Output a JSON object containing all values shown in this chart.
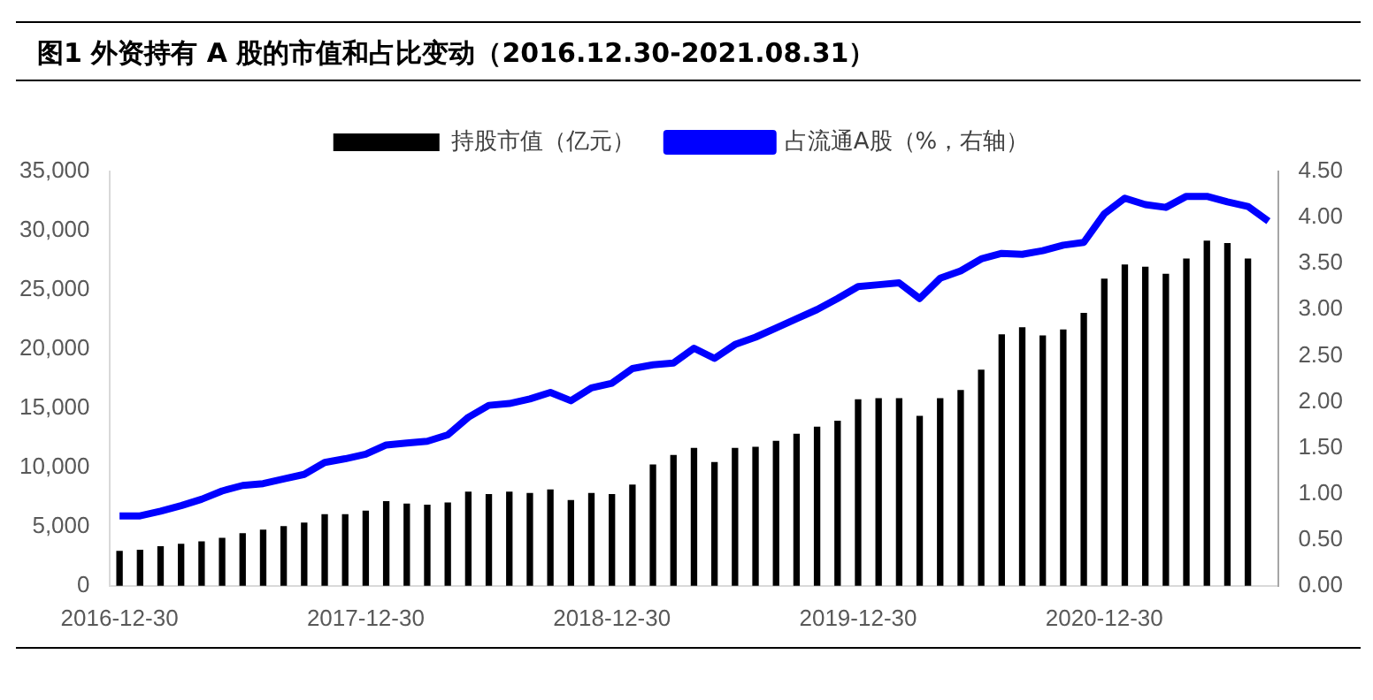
{
  "chart_data": {
    "type": "bar",
    "title": "图1  外资持有 A 股的市值和占比变动（2016.12.30-2021.08.31）",
    "categories": [
      "2016-12-30",
      null,
      null,
      null,
      null,
      null,
      null,
      null,
      null,
      null,
      null,
      null,
      "2017-12-30",
      null,
      null,
      null,
      null,
      null,
      null,
      null,
      null,
      null,
      null,
      null,
      "2018-12-30",
      null,
      null,
      null,
      null,
      null,
      null,
      null,
      null,
      null,
      null,
      null,
      "2019-12-30",
      null,
      null,
      null,
      null,
      null,
      null,
      null,
      null,
      null,
      null,
      null,
      "2020-12-30",
      null,
      null,
      null,
      null,
      null,
      null,
      null,
      null
    ],
    "series": [
      {
        "name": "持股市值（亿元）",
        "color": "#000000",
        "values": [
          2900,
          3000,
          3300,
          3500,
          3700,
          4000,
          4400,
          4700,
          5000,
          5300,
          6000,
          6000,
          6300,
          7100,
          6900,
          6800,
          7000,
          7900,
          7700,
          7900,
          7800,
          8100,
          7200,
          7800,
          7700,
          8500,
          10200,
          11000,
          11600,
          10400,
          11600,
          11700,
          12200,
          12800,
          13400,
          13900,
          15700,
          15800,
          15800,
          14300,
          15800,
          16500,
          18200,
          21200,
          21800,
          21100,
          21600,
          23000,
          25900,
          27100,
          26900,
          26300,
          27600,
          29100,
          28900,
          27600,
          null
        ]
      },
      {
        "name": "占流通A股（%，右轴）",
        "type": "line",
        "axis": "y2",
        "color": "#0000ff",
        "values": [
          0.76,
          0.76,
          0.81,
          0.87,
          0.94,
          1.03,
          1.09,
          1.11,
          1.16,
          1.21,
          1.34,
          1.38,
          1.43,
          1.53,
          1.55,
          1.57,
          1.64,
          1.83,
          1.96,
          1.98,
          2.03,
          2.1,
          2.01,
          2.15,
          2.2,
          2.36,
          2.4,
          2.42,
          2.58,
          2.47,
          2.62,
          2.7,
          2.8,
          2.9,
          3.0,
          3.12,
          3.25,
          3.27,
          3.29,
          3.12,
          3.34,
          3.42,
          3.55,
          3.61,
          3.6,
          3.64,
          3.7,
          3.73,
          4.04,
          4.21,
          4.14,
          4.11,
          4.23,
          4.23,
          4.17,
          4.12,
          3.96
        ]
      }
    ],
    "ylim": [
      0,
      35000
    ],
    "yticks": [
      0,
      {
        "value": 5000,
        "label": "5,000"
      },
      {
        "value": 10000,
        "label": "10,000"
      },
      {
        "value": 15000,
        "label": "15,000"
      },
      {
        "value": 20000,
        "label": "20,000"
      },
      {
        "value": 25000,
        "label": "25,000"
      },
      {
        "value": 30000,
        "label": "30,000"
      },
      {
        "value": 35000,
        "label": "35,000"
      }
    ],
    "y2lim": [
      0,
      4.5
    ],
    "y2ticks": [
      {
        "value": 0,
        "label": "0.00"
      },
      {
        "value": 0.5,
        "label": "0.50"
      },
      {
        "value": 1,
        "label": "1.00"
      },
      {
        "value": 1.5,
        "label": "1.50"
      },
      {
        "value": 2,
        "label": "2.00"
      },
      {
        "value": 2.5,
        "label": "2.50"
      },
      {
        "value": 3,
        "label": "3.00"
      },
      {
        "value": 3.5,
        "label": "3.50"
      },
      {
        "value": 4,
        "label": "4.00"
      },
      {
        "value": 4.5,
        "label": "4.50"
      }
    ],
    "grid": false,
    "legend": "top",
    "marker": "none",
    "line_style": "solid"
  }
}
